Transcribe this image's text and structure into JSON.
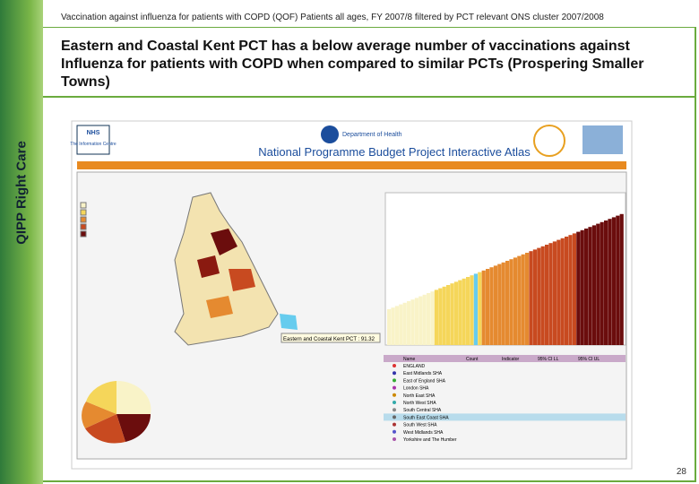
{
  "header": {
    "subtitle": "Vaccination against influenza for patients with COPD (QOF) Patients all ages, FY 2007/8 filtered by PCT relevant ONS cluster 2007/2008",
    "title": "Eastern and Coastal Kent PCT has a below average number of vaccinations against Influenza for patients with COPD when compared to similar PCTs (Prospering Smaller Towns)"
  },
  "sidebar": {
    "label": "QIPP Right Care"
  },
  "screenshot": {
    "nhs": "NHS",
    "centre": "The Information Centre",
    "department": "Department of Health",
    "title": "National Programme Budget Project Interactive Atlas",
    "highlight": "Eastern and Coastal Kent PCT : 91.32",
    "table": {
      "columns": [
        "Name",
        "Count",
        "Indicator",
        "95% CI LL",
        "95% CI UL"
      ],
      "rows": [
        "ENGLAND",
        "East Midlands SHA",
        "East of England SHA",
        "London SHA",
        "North East SHA",
        "North West SHA",
        "South Central SHA",
        "South East Coast SHA",
        "South West SHA",
        "West Midlands SHA",
        "Yorkshire and The Humber"
      ]
    }
  },
  "footer": {
    "page": "28"
  }
}
